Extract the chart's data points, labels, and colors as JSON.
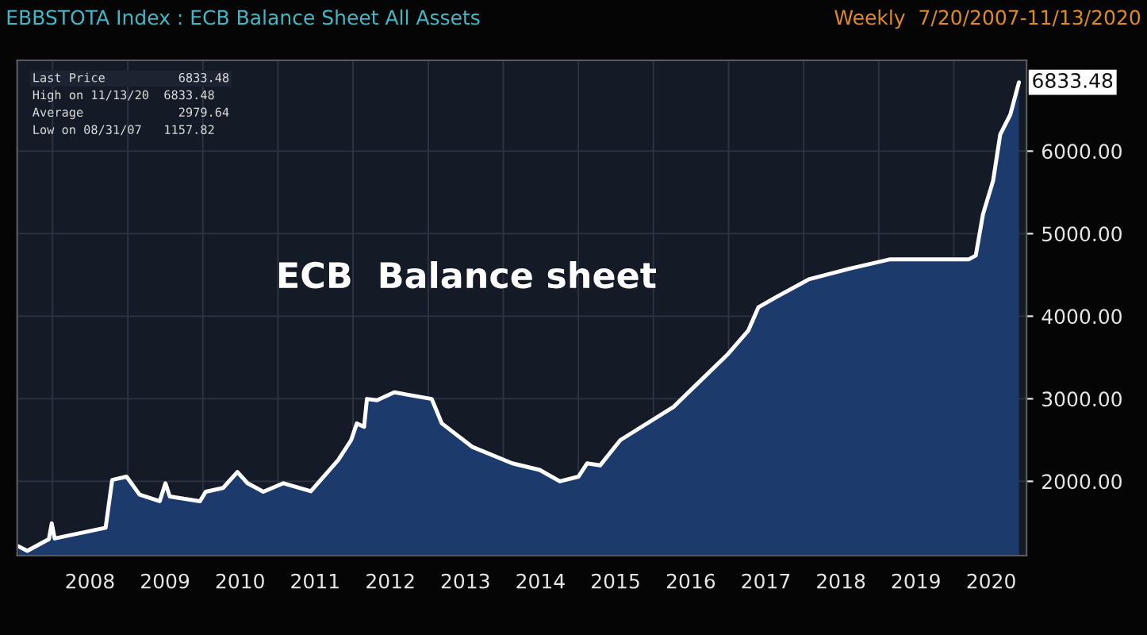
{
  "chart_data": {
    "type": "area",
    "title": "EBBSTOTA Index : ECB Balance Sheet All Assets",
    "subtitle": "Weekly  7/20/2007-11/13/2020",
    "annotations": [
      "Last Price          6833.48",
      "High on 11/13/20  6833.48",
      "Average             2979.64",
      "Low on 08/31/07   1157.82",
      {
        "text": "6833.48",
        "x": "2020-11-13",
        "y": 6833.48
      },
      "ECB  Balance sheet"
    ],
    "x": [
      "2007-07-20",
      "2007-08-31",
      "2007-12-14",
      "2007-12-28",
      "2008-01-11",
      "2008-09-15",
      "2008-10-17",
      "2008-12-26",
      "2009-02-27",
      "2009-06-05",
      "2009-07-03",
      "2009-07-24",
      "2009-12-18",
      "2010-01-15",
      "2010-04-09",
      "2010-06-18",
      "2010-08-06",
      "2010-10-22",
      "2011-01-28",
      "2011-06-10",
      "2011-10-21",
      "2011-12-23",
      "2012-01-20",
      "2012-02-24",
      "2012-03-09",
      "2012-04-27",
      "2012-07-20",
      "2013-01-18",
      "2013-03-08",
      "2013-08-02",
      "2014-02-14",
      "2014-06-27",
      "2014-10-03",
      "2015-01-02",
      "2015-02-13",
      "2015-04-17",
      "2015-07-24",
      "2016-04-08",
      "2016-08-19",
      "2016-12-30",
      "2017-04-07",
      "2017-05-26",
      "2017-08-18",
      "2018-01-26",
      "2018-08-10",
      "2019-02-22",
      "2020-03-13",
      "2020-04-17",
      "2020-05-22",
      "2020-07-10",
      "2020-08-14",
      "2020-10-02",
      "2020-11-13"
    ],
    "series": [
      {
        "color": "#ffffff",
        "values": [
          1212,
          1158,
          1300,
          1491,
          1308,
          1438,
          2017,
          2057,
          1839,
          1759,
          1977,
          1816,
          1759,
          1874,
          1920,
          2113,
          1977,
          1874,
          1977,
          1880,
          2258,
          2499,
          2702,
          2660,
          2998,
          2983,
          3078,
          2998,
          2702,
          2419,
          2218,
          2138,
          2000,
          2057,
          2218,
          2193,
          2499,
          2902,
          3224,
          3545,
          3828,
          4109,
          4229,
          4447,
          4575,
          4688,
          4688,
          4736,
          5235,
          5638,
          6201,
          6443,
          6833.48
        ]
      }
    ],
    "ylim": [
      1100,
      7100
    ],
    "yticks": [
      {
        "value": 2000,
        "label": "2000.00"
      },
      {
        "value": 3000,
        "label": "3000.00"
      },
      {
        "value": 4000,
        "label": "4000.00"
      },
      {
        "value": 5000,
        "label": "5000.00"
      },
      {
        "value": 6000,
        "label": "6000.00"
      }
    ],
    "xlim": [
      "2007-07-13",
      "2020-12-20"
    ],
    "xticks": [
      {
        "value": "2008-01-01",
        "label": null
      },
      {
        "value": "2008-07-01",
        "label": "2008"
      },
      {
        "value": "2009-01-01",
        "label": null
      },
      {
        "value": "2009-07-01",
        "label": "2009"
      },
      {
        "value": "2010-01-01",
        "label": null
      },
      {
        "value": "2010-07-01",
        "label": "2010"
      },
      {
        "value": "2011-01-01",
        "label": null
      },
      {
        "value": "2011-07-01",
        "label": "2011"
      },
      {
        "value": "2012-01-01",
        "label": null
      },
      {
        "value": "2012-07-01",
        "label": "2012"
      },
      {
        "value": "2013-01-01",
        "label": null
      },
      {
        "value": "2013-07-01",
        "label": "2013"
      },
      {
        "value": "2014-01-01",
        "label": null
      },
      {
        "value": "2014-07-01",
        "label": "2014"
      },
      {
        "value": "2015-01-01",
        "label": null
      },
      {
        "value": "2015-07-01",
        "label": "2015"
      },
      {
        "value": "2016-01-01",
        "label": null
      },
      {
        "value": "2016-07-01",
        "label": "2016"
      },
      {
        "value": "2017-01-01",
        "label": null
      },
      {
        "value": "2017-07-01",
        "label": "2017"
      },
      {
        "value": "2018-01-01",
        "label": null
      },
      {
        "value": "2018-07-01",
        "label": "2018"
      },
      {
        "value": "2019-01-01",
        "label": null
      },
      {
        "value": "2019-07-01",
        "label": "2019"
      },
      {
        "value": "2020-01-01",
        "label": null
      },
      {
        "value": "2020-07-01",
        "label": "2020"
      }
    ],
    "grid": true,
    "line_style": "solid"
  }
}
